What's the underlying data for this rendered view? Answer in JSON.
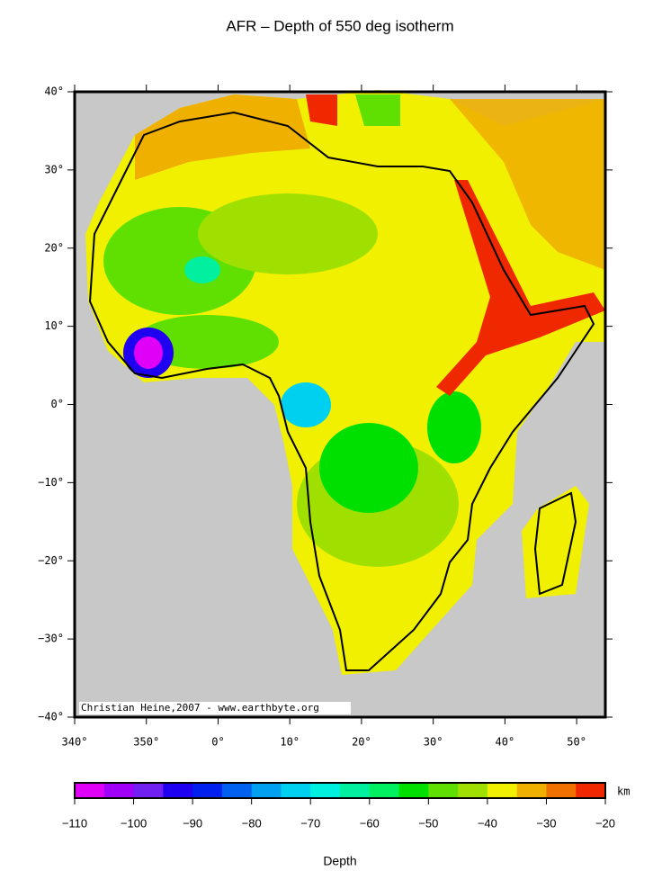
{
  "title": "AFR – Depth of 550 deg isotherm",
  "map": {
    "credit": "Christian Heine,2007 - www.earthbyte.org",
    "xlim": [
      340,
      54
    ],
    "ylim": [
      -40,
      40
    ],
    "xticks": [
      {
        "value": 340,
        "label": "340°"
      },
      {
        "value": 350,
        "label": "350°"
      },
      {
        "value": 0,
        "label": "0°"
      },
      {
        "value": 10,
        "label": "10°"
      },
      {
        "value": 20,
        "label": "20°"
      },
      {
        "value": 30,
        "label": "30°"
      },
      {
        "value": 40,
        "label": "40°"
      },
      {
        "value": 50,
        "label": "50°"
      }
    ],
    "yticks": [
      {
        "value": 40,
        "label": "40°"
      },
      {
        "value": 30,
        "label": "30°"
      },
      {
        "value": 20,
        "label": "20°"
      },
      {
        "value": 10,
        "label": "10°"
      },
      {
        "value": 0,
        "label": "0°"
      },
      {
        "value": -10,
        "label": "−10°"
      },
      {
        "value": -20,
        "label": "−20°"
      },
      {
        "value": -30,
        "label": "−30°"
      },
      {
        "value": -40,
        "label": "−40°"
      }
    ]
  },
  "colorbar": {
    "label": "Depth",
    "unit": "km",
    "lim": [
      -110,
      -20
    ],
    "ticks": [
      {
        "value": -110,
        "label": "−110"
      },
      {
        "value": -100,
        "label": "−100"
      },
      {
        "value": -90,
        "label": "−90"
      },
      {
        "value": -80,
        "label": "−80"
      },
      {
        "value": -70,
        "label": "−70"
      },
      {
        "value": -60,
        "label": "−60"
      },
      {
        "value": -50,
        "label": "−50"
      },
      {
        "value": -40,
        "label": "−40"
      },
      {
        "value": -30,
        "label": "−30"
      },
      {
        "value": -20,
        "label": "−20"
      }
    ],
    "colors": [
      "#e000f8",
      "#a000f8",
      "#7020f0",
      "#2000f0",
      "#0020f0",
      "#0060f0",
      "#00a0f0",
      "#00d0f0",
      "#00f0e0",
      "#00f0a0",
      "#00f060",
      "#00e000",
      "#60e000",
      "#a0e000",
      "#f0f000",
      "#f0b000",
      "#f07000",
      "#f02800"
    ]
  }
}
